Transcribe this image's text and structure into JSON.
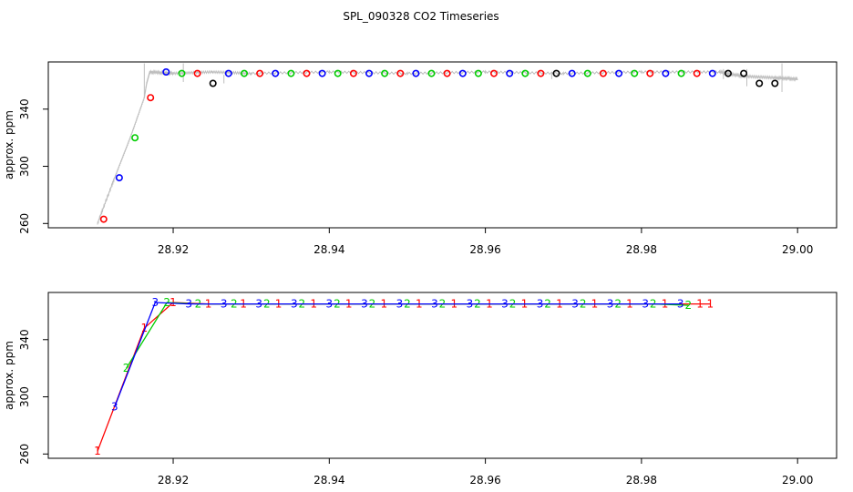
{
  "title": "SPL_090328  CO2 Timeseries",
  "colors": {
    "red": "#ff0000",
    "green": "#00cd00",
    "blue": "#0000ff",
    "black": "#000000",
    "gray": "#bebebe"
  },
  "chart_data": [
    {
      "type": "scatter",
      "title": "SPL_090328  CO2 Timeseries",
      "ylabel": "approx. ppm",
      "xlim": [
        28.904,
        29.005
      ],
      "ylim": [
        257,
        373
      ],
      "xticks": [
        "28.92",
        "28.94",
        "28.96",
        "28.98",
        "29.00"
      ],
      "yticks": [
        "260",
        "300",
        "340"
      ],
      "grid": false,
      "trace": {
        "color": "#bebebe",
        "x": [
          28.9103,
          28.9125,
          28.9145,
          28.9163,
          28.9166,
          28.917,
          28.92,
          28.925,
          28.93,
          28.94,
          28.95,
          28.96,
          28.97,
          28.98,
          28.99,
          28.993,
          28.997,
          29.0
        ],
        "y": [
          260,
          292,
          320,
          348,
          358,
          366,
          365,
          366,
          365,
          366,
          365,
          366,
          365,
          366,
          366,
          363,
          362,
          361
        ]
      },
      "points": {
        "x": [
          28.9111,
          28.9131,
          28.9151,
          28.9171,
          28.9191,
          28.9211,
          28.9231,
          28.9251,
          28.9271,
          28.9291,
          28.9311,
          28.9331,
          28.9351,
          28.9371,
          28.9391,
          28.9411,
          28.9431,
          28.9451,
          28.9471,
          28.9491,
          28.9511,
          28.9531,
          28.9551,
          28.9571,
          28.9591,
          28.9611,
          28.9631,
          28.9651,
          28.9671,
          28.9691,
          28.9711,
          28.9731,
          28.9751,
          28.9771,
          28.9791,
          28.9811,
          28.9831,
          28.9851,
          28.9871,
          28.9891,
          28.9911,
          28.9931,
          28.9951,
          28.9971
        ],
        "y": [
          263,
          292,
          320,
          348,
          366,
          365,
          365,
          358,
          365,
          365,
          365,
          365,
          365,
          365,
          365,
          365,
          365,
          365,
          365,
          365,
          365,
          365,
          365,
          365,
          365,
          365,
          365,
          365,
          365,
          365,
          365,
          365,
          365,
          365,
          365,
          365,
          365,
          365,
          365,
          365,
          365,
          365,
          358,
          358
        ],
        "colors": [
          "red",
          "blue",
          "green",
          "red",
          "blue",
          "green",
          "red",
          "black",
          "blue",
          "green",
          "red",
          "blue",
          "green",
          "red",
          "blue",
          "green",
          "red",
          "blue",
          "green",
          "red",
          "blue",
          "green",
          "red",
          "blue",
          "green",
          "red",
          "blue",
          "green",
          "red",
          "black",
          "blue",
          "green",
          "red",
          "blue",
          "green",
          "red",
          "blue",
          "green",
          "red",
          "blue",
          "black",
          "black",
          "black",
          "black"
        ]
      }
    },
    {
      "type": "line",
      "ylabel": "approx. ppm",
      "xlim": [
        28.904,
        29.005
      ],
      "ylim": [
        257,
        373
      ],
      "xticks": [
        "28.92",
        "28.94",
        "28.96",
        "28.98",
        "29.00"
      ],
      "yticks": [
        "260",
        "300",
        "340"
      ],
      "grid": false,
      "series": [
        {
          "label": "1",
          "color": "red",
          "x": [
            28.9103,
            28.9163,
            28.92,
            28.9245,
            28.929,
            28.9335,
            28.938,
            28.9425,
            28.947,
            28.9515,
            28.956,
            28.9605,
            28.965,
            28.9695,
            28.974,
            28.9785,
            28.983,
            28.9875,
            28.9888
          ],
          "y": [
            262,
            348,
            366,
            365,
            365,
            365,
            365,
            365,
            365,
            365,
            365,
            365,
            365,
            365,
            365,
            365,
            365,
            365,
            365
          ]
        },
        {
          "label": "2",
          "color": "green",
          "x": [
            28.914,
            28.9192,
            28.9232,
            28.9278,
            28.932,
            28.9365,
            28.941,
            28.9455,
            28.95,
            28.9545,
            28.959,
            28.9635,
            28.968,
            28.9725,
            28.977,
            28.9815,
            28.986
          ],
          "y": [
            320,
            366,
            365,
            365,
            365,
            365,
            365,
            365,
            365,
            365,
            365,
            365,
            365,
            365,
            365,
            365,
            364
          ]
        },
        {
          "label": "3",
          "color": "blue",
          "x": [
            28.9125,
            28.9177,
            28.922,
            28.9265,
            28.931,
            28.9355,
            28.94,
            28.9445,
            28.949,
            28.9535,
            28.958,
            28.9625,
            28.967,
            28.9715,
            28.976,
            28.9805,
            28.985
          ],
          "y": [
            293,
            366,
            365,
            365,
            365,
            365,
            365,
            365,
            365,
            365,
            365,
            365,
            365,
            365,
            365,
            365,
            365
          ]
        }
      ]
    }
  ]
}
